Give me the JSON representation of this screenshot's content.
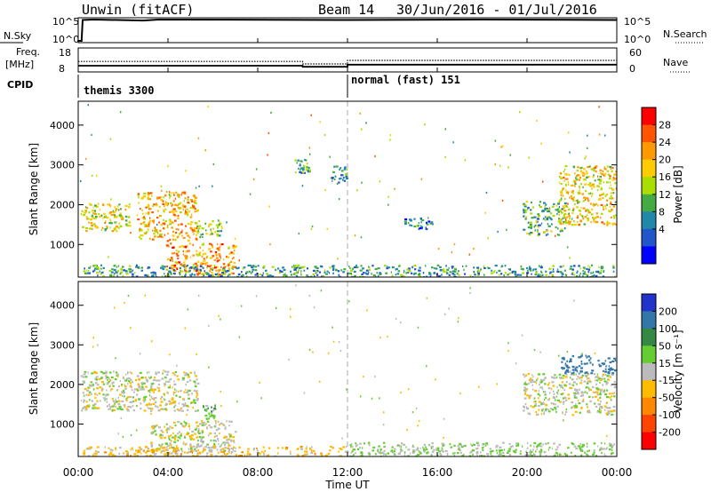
{
  "header": {
    "station": "Unwin (fitACF)",
    "beam": "Beam 14",
    "dates": "30/Jun/2016 - 01/Jul/2016"
  },
  "panel_labels": {
    "nsky": "N.Sky",
    "nsearch": "N.Search",
    "freq_line1": "Freq.",
    "freq_line2": "[MHz]",
    "nave": "Nave",
    "cpid": "CPID"
  },
  "noise_ticks_left": [
    "10^5",
    "10^0"
  ],
  "noise_ticks_right": [
    "10^5",
    "10^0"
  ],
  "freq_ticks": [
    "18",
    "8"
  ],
  "nave_ticks": [
    "60",
    "0"
  ],
  "cpid_modes": [
    "themis 3300",
    "normal (fast) 151"
  ],
  "range_ticks": [
    "4000",
    "3000",
    "2000",
    "1000"
  ],
  "ylabel": "Slant Range [km]",
  "time_ticks": [
    "00:00",
    "04:00",
    "08:00",
    "12:00",
    "16:00",
    "20:00",
    "00:00"
  ],
  "xlabel": "Time UT",
  "colorbars": {
    "power": {
      "title": "Power [dB]",
      "labels": [
        "28",
        "24",
        "20",
        "16",
        "12",
        "8",
        "4"
      ],
      "colors": [
        "#ff0000",
        "#ff5500",
        "#ff9900",
        "#ffcc00",
        "#aadd00",
        "#44aa44",
        "#2288aa",
        "#2255cc",
        "#0000ff"
      ]
    },
    "velocity": {
      "title": "Velocity [m s⁻¹]",
      "labels": [
        "200",
        "100",
        "50",
        "15",
        "-15",
        "-50",
        "-100",
        "-200"
      ],
      "colors": [
        "#2233cc",
        "#3377aa",
        "#338844",
        "#66cc33",
        "#bbbbbb",
        "#ffbb00",
        "#ff8800",
        "#ff4400",
        "#ff0000"
      ]
    }
  },
  "chart_data": [
    {
      "type": "line",
      "title": "N.Sky / N.Search",
      "x_range_hours": [
        0,
        24
      ],
      "yscale": "log",
      "series": [
        {
          "name": "N.Sky",
          "x": [
            0,
            0.15,
            0.2,
            0.7,
            2.9,
            3.6,
            12,
            18,
            24
          ],
          "y": [
            1,
            1,
            80000,
            100000,
            60000,
            100000,
            80000,
            100000,
            80000
          ]
        }
      ]
    },
    {
      "type": "line",
      "title": "Freq. [MHz] / Nave",
      "x_range_hours": [
        0,
        24
      ],
      "series": [
        {
          "name": "Freq.",
          "x": [
            0,
            10.0,
            10.0,
            12.0,
            12.0,
            24
          ],
          "y": [
            10.5,
            10.5,
            10,
            10,
            11,
            11
          ]
        },
        {
          "name": "Nave",
          "x": [
            0,
            10.0,
            10.0,
            12.0,
            12.0,
            24
          ],
          "y": [
            27,
            27,
            20,
            20,
            30,
            30
          ]
        }
      ]
    },
    {
      "type": "heatmap",
      "quantity": "Power [dB]",
      "x_range_hours": [
        0,
        24
      ],
      "ylim": [
        180,
        4600
      ],
      "regions": [
        {
          "t0": 0.1,
          "t1": 2.3,
          "r0": 1350,
          "r1": 2050,
          "v": 16
        },
        {
          "t0": 2.6,
          "t1": 5.3,
          "r0": 1100,
          "r1": 2350,
          "v": 20
        },
        {
          "t0": 3.9,
          "t1": 7.0,
          "r0": 260,
          "r1": 1050,
          "v": 22
        },
        {
          "t0": 5.2,
          "t1": 6.4,
          "r0": 1200,
          "r1": 1650,
          "v": 12
        },
        {
          "t0": 0.2,
          "t1": 23.9,
          "r0": 200,
          "r1": 500,
          "v": 8
        },
        {
          "t0": 9.6,
          "t1": 10.3,
          "r0": 2800,
          "r1": 3150,
          "v": 8
        },
        {
          "t0": 11.2,
          "t1": 12.0,
          "r0": 2550,
          "r1": 3000,
          "v": 8
        },
        {
          "t0": 14.5,
          "t1": 15.8,
          "r0": 1400,
          "r1": 1700,
          "v": 6
        },
        {
          "t0": 19.8,
          "t1": 21.7,
          "r0": 1250,
          "r1": 2100,
          "v": 10
        },
        {
          "t0": 21.4,
          "t1": 24.0,
          "r0": 1500,
          "r1": 3000,
          "v": 18
        }
      ]
    },
    {
      "type": "heatmap",
      "quantity": "Velocity [m s-1]",
      "x_range_hours": [
        0,
        24
      ],
      "ylim": [
        180,
        4600
      ],
      "regions": [
        {
          "t0": 0.1,
          "t1": 5.3,
          "r0": 1350,
          "r1": 2350,
          "v": 0
        },
        {
          "t0": 3.2,
          "t1": 7.0,
          "r0": 260,
          "r1": 1100,
          "v": 0
        },
        {
          "t0": 5.5,
          "t1": 6.3,
          "r0": 1150,
          "r1": 1500,
          "v": 30
        },
        {
          "t0": 0.2,
          "t1": 12.0,
          "r0": 200,
          "r1": 450,
          "v": -30
        },
        {
          "t0": 12.0,
          "t1": 23.9,
          "r0": 200,
          "r1": 550,
          "v": 20
        },
        {
          "t0": 19.8,
          "t1": 23.9,
          "r0": 1250,
          "r1": 2300,
          "v": 0
        },
        {
          "t0": 21.5,
          "t1": 24.0,
          "r0": 2300,
          "r1": 2750,
          "v": 150
        }
      ]
    }
  ]
}
